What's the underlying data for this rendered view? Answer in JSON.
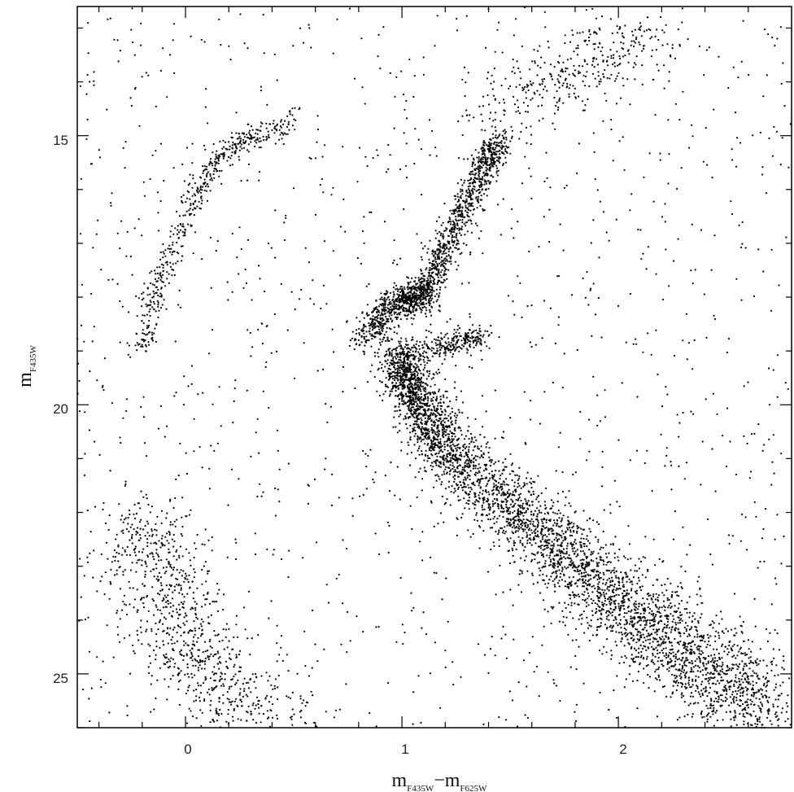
{
  "chart_data": {
    "type": "scatter",
    "title": "",
    "xlabel": {
      "base": "m",
      "sub1": "F435W",
      "minus": "−",
      "base2": "m",
      "sub2": "F625W"
    },
    "ylabel": {
      "base": "m",
      "sub": "F435W"
    },
    "xlim": [
      -0.5,
      2.8
    ],
    "ylim": [
      26,
      12.6
    ],
    "y_inverted": true,
    "x_ticks": [
      0,
      1,
      2
    ],
    "x_tick_labels": [
      "0",
      "1",
      "2"
    ],
    "y_ticks": [
      15,
      20,
      25
    ],
    "y_tick_labels": [
      "15",
      "20",
      "25"
    ],
    "grid": false,
    "legend": "none",
    "point_color": "#000000",
    "features": [
      {
        "name": "main-sequence",
        "x": [
          0.98,
          1.05,
          1.2,
          1.5,
          1.8,
          2.1,
          2.4,
          2.7
        ],
        "y": [
          19.0,
          19.8,
          20.8,
          21.9,
          23.0,
          24.0,
          24.9,
          25.7
        ]
      },
      {
        "name": "subgiant-branch",
        "x": [
          0.83,
          0.95,
          1.05,
          1.1
        ],
        "y": [
          18.8,
          18.2,
          18.0,
          18.0
        ]
      },
      {
        "name": "red-giant-branch",
        "x": [
          1.1,
          1.18,
          1.28,
          1.38,
          1.45
        ],
        "y": [
          18.0,
          17.3,
          16.4,
          15.6,
          15.1
        ]
      },
      {
        "name": "agb-bump",
        "x": [
          1.08,
          1.25,
          1.38
        ],
        "y": [
          19.0,
          18.9,
          18.7
        ]
      },
      {
        "name": "upper-giant-plume",
        "x": [
          1.4,
          1.6,
          1.8,
          2.0,
          2.2
        ],
        "y": [
          14.8,
          14.2,
          13.8,
          13.4,
          13.1
        ]
      },
      {
        "name": "horizontal-branch",
        "x": [
          0.5,
          0.3,
          0.15,
          0.05,
          -0.05,
          -0.15,
          -0.2
        ],
        "y": [
          14.8,
          15.0,
          15.4,
          16.1,
          17.0,
          18.0,
          19.0
        ]
      },
      {
        "name": "white-dwarf-sequence",
        "x": [
          -0.2,
          -0.15,
          -0.05,
          0.05,
          0.2,
          0.4
        ],
        "y": [
          22.0,
          23.0,
          24.0,
          24.8,
          25.4,
          25.9
        ]
      }
    ]
  }
}
